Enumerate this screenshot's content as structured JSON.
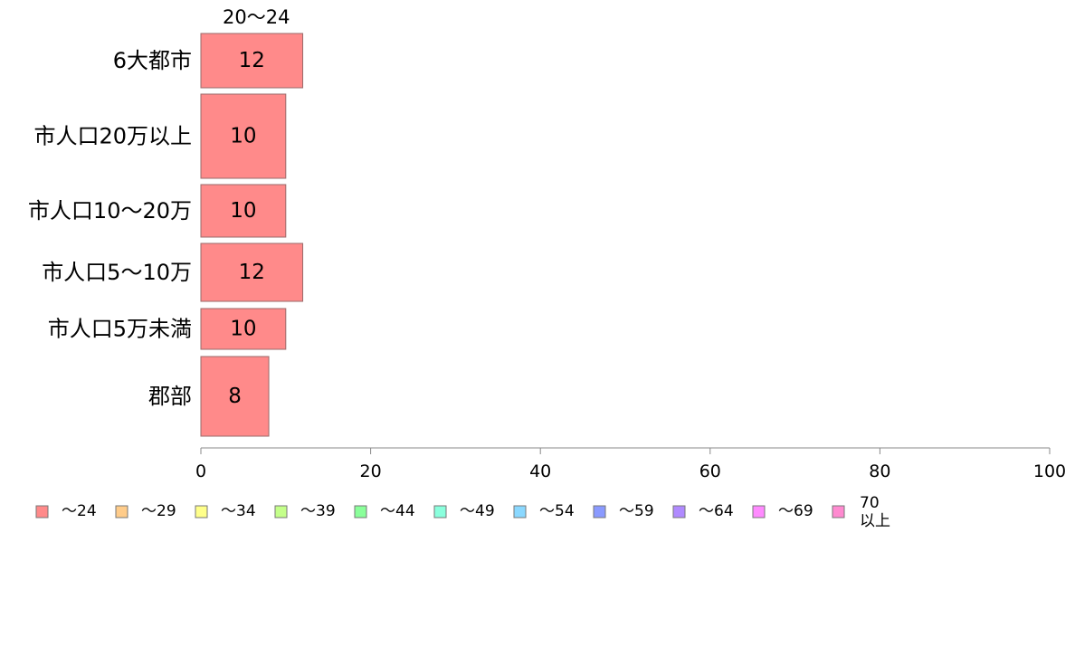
{
  "chart_data": {
    "type": "bar",
    "orientation": "horizontal",
    "stacked": true,
    "categories": [
      "6大都市",
      "市人口20万以上",
      "市人口10～20万",
      "市人口5～10万",
      "市人口5万未満",
      "郡部"
    ],
    "series": [
      {
        "name": "20～24",
        "values": [
          12,
          10,
          10,
          12,
          10,
          8
        ],
        "color": "#ff8a8a"
      }
    ],
    "xlim": [
      0,
      100
    ],
    "xticks": [
      0,
      20,
      40,
      60,
      80,
      100
    ],
    "grid": false,
    "legend": {
      "placement": "bottom",
      "items": [
        {
          "label": "～24",
          "color": "#ff8a8a"
        },
        {
          "label": "～29",
          "color": "#ffcc8a"
        },
        {
          "label": "～34",
          "color": "#ffff8a"
        },
        {
          "label": "～39",
          "color": "#c4ff8a"
        },
        {
          "label": "～44",
          "color": "#8aff9a"
        },
        {
          "label": "～49",
          "color": "#8affdd"
        },
        {
          "label": "～54",
          "color": "#8ad8ff"
        },
        {
          "label": "～59",
          "color": "#8a9aff"
        },
        {
          "label": "～64",
          "color": "#b08aff"
        },
        {
          "label": "～69",
          "color": "#ff8aff"
        },
        {
          "label": "70\n以上",
          "color": "#ff8ad0"
        }
      ]
    }
  }
}
